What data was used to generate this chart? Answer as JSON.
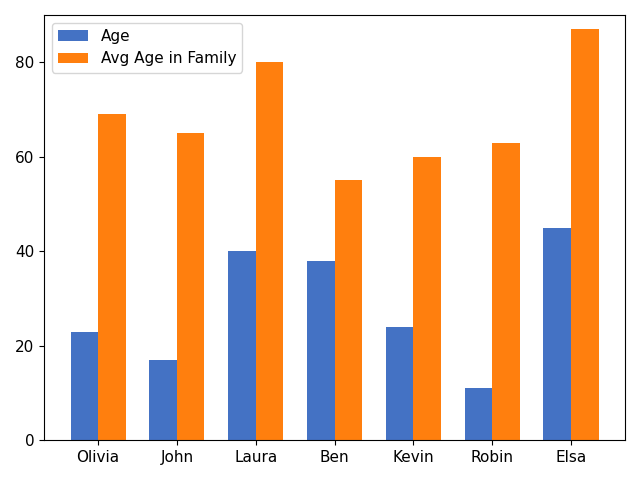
{
  "names": [
    "Olivia",
    "John",
    "Laura",
    "Ben",
    "Kevin",
    "Robin",
    "Elsa"
  ],
  "age": [
    23,
    17,
    40,
    38,
    24,
    11,
    45
  ],
  "avg_age_in_family": [
    69,
    65,
    80,
    55,
    60,
    63,
    87
  ],
  "color_age": "#4472C4",
  "color_avg": "#FF7F0E",
  "legend_labels": [
    "Age",
    "Avg Age in Family"
  ],
  "ylim": [
    0,
    90
  ],
  "yticks": [
    0,
    20,
    40,
    60,
    80
  ],
  "bar_width": 0.35
}
